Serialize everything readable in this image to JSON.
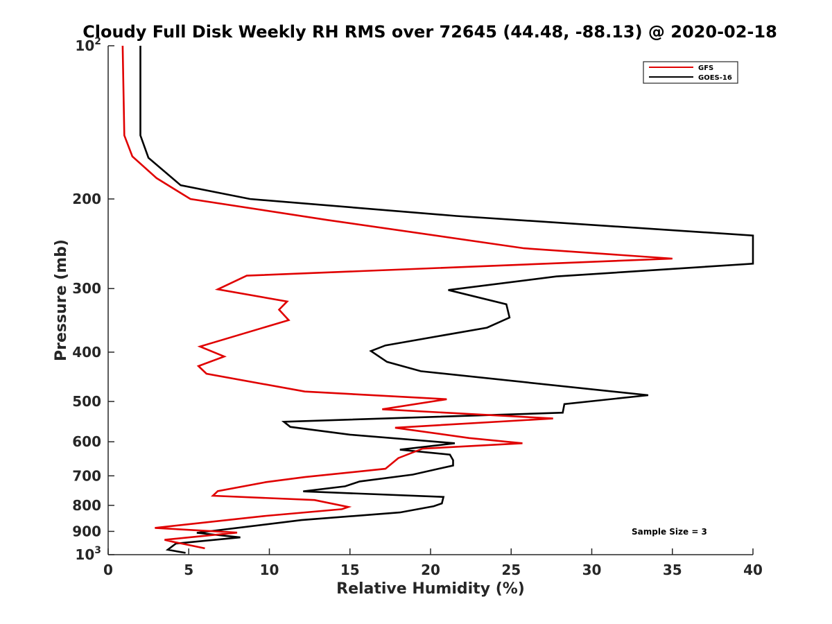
{
  "chart_data": {
    "type": "line",
    "title": "Cloudy Full Disk Weekly RH RMS over 72645 (44.48, -88.13) @ 2020-02-18",
    "xlabel": "Relative Humidity (%)",
    "ylabel": "Pressure (mb)",
    "xlim": [
      0,
      40
    ],
    "ylim": [
      100,
      1000
    ],
    "yscale": "log",
    "y_reversed": true,
    "x_ticks": [
      0,
      5,
      10,
      15,
      20,
      25,
      30,
      35,
      40
    ],
    "y_ticks": [
      {
        "value": 100,
        "base": "10",
        "exp": "2"
      },
      {
        "value": 200,
        "label": "200"
      },
      {
        "value": 300,
        "label": "300"
      },
      {
        "value": 400,
        "label": "400"
      },
      {
        "value": 500,
        "label": "500"
      },
      {
        "value": 600,
        "label": "600"
      },
      {
        "value": 700,
        "label": "700"
      },
      {
        "value": 800,
        "label": "800"
      },
      {
        "value": 900,
        "label": "900"
      },
      {
        "value": 1000,
        "base": "10",
        "exp": "3"
      }
    ],
    "grid": false,
    "legend_position": "top-right",
    "annotation": "Sample Size = 3",
    "series": [
      {
        "name": "GFS",
        "color": "#e00000",
        "points": [
          [
            0.9,
            100
          ],
          [
            1.0,
            150
          ],
          [
            1.5,
            165
          ],
          [
            3.0,
            182
          ],
          [
            5.1,
            200
          ],
          [
            13.6,
            220
          ],
          [
            25.8,
            250
          ],
          [
            35.0,
            262
          ],
          [
            8.6,
            283
          ],
          [
            6.8,
            301
          ],
          [
            11.1,
            318
          ],
          [
            10.6,
            330
          ],
          [
            11.2,
            346
          ],
          [
            5.7,
            390
          ],
          [
            7.2,
            408
          ],
          [
            5.6,
            426
          ],
          [
            6.1,
            441
          ],
          [
            12.2,
            478
          ],
          [
            21.0,
            495
          ],
          [
            17.0,
            518
          ],
          [
            27.6,
            540
          ],
          [
            17.8,
            563
          ],
          [
            22.4,
            590
          ],
          [
            25.7,
            604
          ],
          [
            19.5,
            619
          ],
          [
            18.0,
            646
          ],
          [
            17.2,
            678
          ],
          [
            12.2,
            704
          ],
          [
            9.8,
            720
          ],
          [
            6.8,
            750
          ],
          [
            6.5,
            766
          ],
          [
            12.8,
            781
          ],
          [
            14.9,
            806
          ],
          [
            14.5,
            814
          ],
          [
            9.8,
            839
          ],
          [
            2.9,
            886
          ],
          [
            8.0,
            905
          ],
          [
            3.5,
            935
          ],
          [
            4.0,
            943
          ],
          [
            6.0,
            972
          ]
        ]
      },
      {
        "name": "GOES-16",
        "color": "#000000",
        "points": [
          [
            2.0,
            100
          ],
          [
            2.0,
            150
          ],
          [
            2.5,
            166
          ],
          [
            4.5,
            188
          ],
          [
            8.8,
            200
          ],
          [
            21.6,
            216
          ],
          [
            40.0,
            236
          ],
          [
            40.0,
            268
          ],
          [
            27.8,
            284
          ],
          [
            21.1,
            302
          ],
          [
            24.7,
            322
          ],
          [
            24.9,
            342
          ],
          [
            23.5,
            358
          ],
          [
            17.2,
            388
          ],
          [
            16.3,
            398
          ],
          [
            17.3,
            418
          ],
          [
            19.4,
            436
          ],
          [
            33.5,
            486
          ],
          [
            28.3,
            506
          ],
          [
            28.2,
            526
          ],
          [
            10.9,
            548
          ],
          [
            11.3,
            561
          ],
          [
            15.0,
            581
          ],
          [
            21.5,
            604
          ],
          [
            18.1,
            622
          ],
          [
            21.2,
            636
          ],
          [
            21.4,
            652
          ],
          [
            21.4,
            668
          ],
          [
            18.9,
            696
          ],
          [
            15.6,
            718
          ],
          [
            14.7,
            734
          ],
          [
            12.1,
            751
          ],
          [
            20.8,
            770
          ],
          [
            20.7,
            793
          ],
          [
            20.2,
            803
          ],
          [
            18.1,
            826
          ],
          [
            12.0,
            855
          ],
          [
            5.5,
            906
          ],
          [
            8.2,
            925
          ],
          [
            4.2,
            951
          ],
          [
            3.7,
            978
          ],
          [
            4.8,
            992
          ]
        ]
      }
    ]
  }
}
